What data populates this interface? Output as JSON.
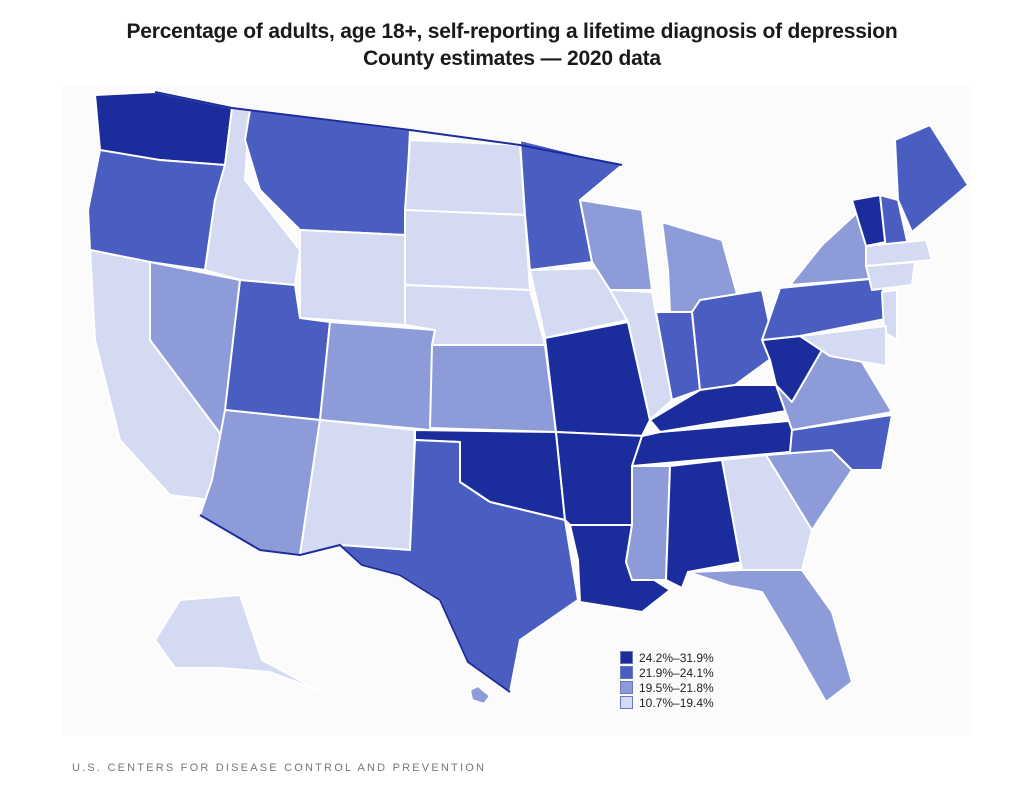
{
  "title": {
    "line1": "Percentage of adults, age 18+, self-reporting a lifetime diagnosis of depression",
    "line2": "County estimates — 2020 data"
  },
  "legend": [
    {
      "label": "24.2%–31.9%",
      "color": "#1b2c9c"
    },
    {
      "label": "21.9%–24.1%",
      "color": "#4a5ec2"
    },
    {
      "label": "19.5%–21.8%",
      "color": "#8d9bd9"
    },
    {
      "label": "10.7%–19.4%",
      "color": "#d3daf1"
    }
  ],
  "states": [
    {
      "name": "WA",
      "cls": 0
    },
    {
      "name": "OR",
      "cls": 1
    },
    {
      "name": "CA",
      "cls": 3
    },
    {
      "name": "NV",
      "cls": 2
    },
    {
      "name": "ID",
      "cls": 3
    },
    {
      "name": "MT",
      "cls": 1
    },
    {
      "name": "WY",
      "cls": 3
    },
    {
      "name": "UT",
      "cls": 1
    },
    {
      "name": "CO",
      "cls": 2
    },
    {
      "name": "AZ",
      "cls": 2
    },
    {
      "name": "NM",
      "cls": 3
    },
    {
      "name": "ND",
      "cls": 3
    },
    {
      "name": "SD",
      "cls": 3
    },
    {
      "name": "NE",
      "cls": 3
    },
    {
      "name": "KS",
      "cls": 2
    },
    {
      "name": "OK",
      "cls": 0
    },
    {
      "name": "TX",
      "cls": 1
    },
    {
      "name": "MN",
      "cls": 1
    },
    {
      "name": "IA",
      "cls": 3
    },
    {
      "name": "MO",
      "cls": 0
    },
    {
      "name": "AR",
      "cls": 0
    },
    {
      "name": "LA",
      "cls": 0
    },
    {
      "name": "WI",
      "cls": 2
    },
    {
      "name": "IL",
      "cls": 3
    },
    {
      "name": "MI",
      "cls": 2
    },
    {
      "name": "IN",
      "cls": 1
    },
    {
      "name": "OH",
      "cls": 1
    },
    {
      "name": "KY",
      "cls": 0
    },
    {
      "name": "TN",
      "cls": 0
    },
    {
      "name": "MS",
      "cls": 2
    },
    {
      "name": "AL",
      "cls": 0
    },
    {
      "name": "GA",
      "cls": 3
    },
    {
      "name": "FL",
      "cls": 2
    },
    {
      "name": "SC",
      "cls": 2
    },
    {
      "name": "NC",
      "cls": 1
    },
    {
      "name": "VA",
      "cls": 2
    },
    {
      "name": "WV",
      "cls": 0
    },
    {
      "name": "PA",
      "cls": 1
    },
    {
      "name": "NY",
      "cls": 2
    },
    {
      "name": "ME",
      "cls": 1
    },
    {
      "name": "VT",
      "cls": 0
    },
    {
      "name": "NH",
      "cls": 1
    },
    {
      "name": "MA",
      "cls": 3
    },
    {
      "name": "CT",
      "cls": 3
    },
    {
      "name": "NJ",
      "cls": 3
    },
    {
      "name": "MD",
      "cls": 3
    },
    {
      "name": "AK",
      "cls": 3
    },
    {
      "name": "HI",
      "cls": 2
    }
  ],
  "source": "U.S. CENTERS FOR DISEASE CONTROL AND PREVENTION"
}
